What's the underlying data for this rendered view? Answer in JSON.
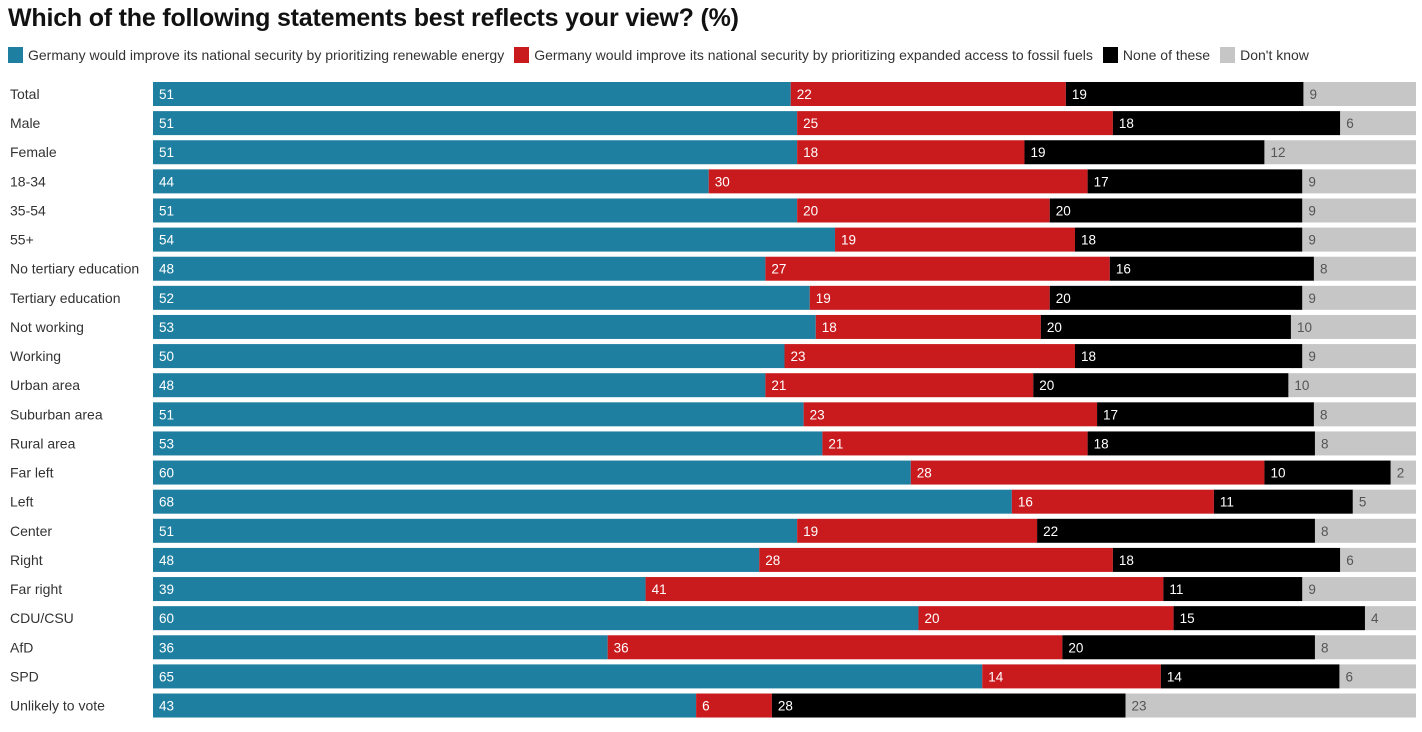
{
  "chart_data": {
    "type": "bar",
    "orientation": "horizontal",
    "stacked": true,
    "normalized_to": 100,
    "title": "Which of the following statements best reflects your view? (%)",
    "xlabel": "",
    "ylabel": "",
    "xlim": [
      0,
      100
    ],
    "grid": false,
    "legend_position": "top-left",
    "categories": [
      "Total",
      "Male",
      "Female",
      "18-34",
      "35-54",
      "55+",
      "No tertiary education",
      "Tertiary education",
      "Not working",
      "Working",
      "Urban area",
      "Suburban area",
      "Rural area",
      "Far left",
      "Left",
      "Center",
      "Right",
      "Far right",
      "CDU/CSU",
      "AfD",
      "SPD",
      "Unlikely to vote"
    ],
    "series": [
      {
        "name": "Germany would improve its national security by prioritizing renewable energy",
        "color": "#1f7fa0",
        "label_color": "#ffffff",
        "values": [
          51,
          51,
          51,
          44,
          51,
          54,
          48,
          52,
          53,
          50,
          48,
          51,
          53,
          60,
          68,
          51,
          48,
          39,
          60,
          36,
          65,
          43
        ]
      },
      {
        "name": "Germany would improve its national security by prioritizing expanded access to fossil fuels",
        "color": "#c91b1e",
        "label_color": "#ffffff",
        "values": [
          22,
          25,
          18,
          30,
          20,
          19,
          27,
          19,
          18,
          23,
          21,
          23,
          21,
          28,
          16,
          19,
          28,
          41,
          20,
          36,
          14,
          6
        ]
      },
      {
        "name": "None of these",
        "color": "#000000",
        "label_color": "#ffffff",
        "values": [
          19,
          18,
          19,
          17,
          20,
          18,
          16,
          20,
          20,
          18,
          20,
          17,
          18,
          10,
          11,
          22,
          18,
          11,
          15,
          20,
          14,
          28
        ]
      },
      {
        "name": "Don't know",
        "color": "#c6c6c6",
        "label_color": "#555555",
        "values": [
          9,
          6,
          12,
          9,
          9,
          9,
          8,
          9,
          10,
          9,
          10,
          8,
          8,
          2,
          5,
          8,
          6,
          9,
          4,
          8,
          6,
          23
        ]
      }
    ]
  }
}
